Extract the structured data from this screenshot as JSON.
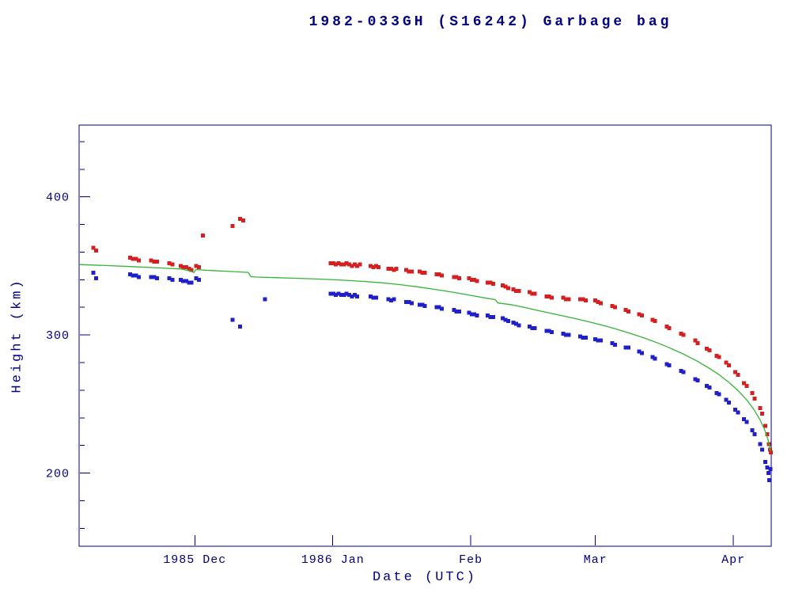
{
  "chart_data": {
    "type": "scatter",
    "title": "1982-033GH (S16242) Garbage bag",
    "xlabel": "Date (UTC)",
    "ylabel": "Height (km)",
    "grid": false,
    "legend": false,
    "colors": {
      "frame": "#000080",
      "text": "#000080",
      "red_series": "#d42020",
      "blue_series": "#2020c8",
      "green_line": "#33b533"
    },
    "x_axis": {
      "unit": "days since 1985-11-05",
      "lim": [
        0,
        155.5
      ],
      "ticks": [
        {
          "t": 26,
          "label": "1985 Dec"
        },
        {
          "t": 57,
          "label": "1986 Jan"
        },
        {
          "t": 88,
          "label": "Feb"
        },
        {
          "t": 116,
          "label": "Mar"
        },
        {
          "t": 147,
          "label": "Apr"
        }
      ]
    },
    "y_axis": {
      "lim": [
        147,
        452
      ],
      "ticks": [
        {
          "v": 200,
          "label": "200"
        },
        {
          "v": 300,
          "label": "300"
        },
        {
          "v": 400,
          "label": "400"
        }
      ],
      "minor_step": 20
    },
    "series": [
      {
        "id": "red-squares",
        "kind": "scatter",
        "marker": "square",
        "color": "red_series",
        "points": [
          [
            3.2,
            363
          ],
          [
            3.8,
            361
          ],
          [
            11.5,
            356
          ],
          [
            12.1,
            355
          ],
          [
            12.8,
            355
          ],
          [
            13.4,
            354
          ],
          [
            16.2,
            354
          ],
          [
            16.9,
            353
          ],
          [
            17.5,
            353
          ],
          [
            20.3,
            352
          ],
          [
            21.0,
            351
          ],
          [
            22.8,
            350
          ],
          [
            23.4,
            349
          ],
          [
            24.1,
            349
          ],
          [
            24.7,
            348
          ],
          [
            25.2,
            347
          ],
          [
            26.3,
            350
          ],
          [
            26.9,
            349
          ],
          [
            27.8,
            372
          ],
          [
            34.5,
            379
          ],
          [
            36.2,
            384
          ],
          [
            36.9,
            383
          ],
          [
            56.5,
            352
          ],
          [
            57.1,
            352
          ],
          [
            57.7,
            351
          ],
          [
            58.3,
            352
          ],
          [
            58.9,
            351
          ],
          [
            59.5,
            351
          ],
          [
            60.1,
            352
          ],
          [
            60.7,
            351
          ],
          [
            61.3,
            350
          ],
          [
            61.9,
            351
          ],
          [
            62.5,
            350
          ],
          [
            63.1,
            351
          ],
          [
            65.5,
            350
          ],
          [
            66.1,
            349
          ],
          [
            66.7,
            350
          ],
          [
            67.3,
            349
          ],
          [
            69.5,
            348
          ],
          [
            70.1,
            348
          ],
          [
            70.7,
            347
          ],
          [
            71.3,
            348
          ],
          [
            73.5,
            347
          ],
          [
            74.1,
            346
          ],
          [
            74.7,
            346
          ],
          [
            76.5,
            346
          ],
          [
            77.1,
            345
          ],
          [
            77.7,
            345
          ],
          [
            80.3,
            344
          ],
          [
            80.9,
            344
          ],
          [
            81.5,
            343
          ],
          [
            84.2,
            342
          ],
          [
            84.8,
            342
          ],
          [
            85.4,
            341
          ],
          [
            87.6,
            341
          ],
          [
            88.2,
            340
          ],
          [
            88.8,
            340
          ],
          [
            89.4,
            339
          ],
          [
            91.8,
            338
          ],
          [
            92.4,
            338
          ],
          [
            93.0,
            337
          ],
          [
            95.2,
            336
          ],
          [
            95.8,
            335
          ],
          [
            96.4,
            334
          ],
          [
            97.6,
            333
          ],
          [
            98.2,
            332
          ],
          [
            98.8,
            332
          ],
          [
            101.2,
            331
          ],
          [
            101.8,
            330
          ],
          [
            102.4,
            330
          ],
          [
            105.0,
            328
          ],
          [
            105.6,
            328
          ],
          [
            106.2,
            327
          ],
          [
            108.8,
            327
          ],
          [
            109.4,
            326
          ],
          [
            110.0,
            326
          ],
          [
            112.6,
            326
          ],
          [
            113.2,
            326
          ],
          [
            113.8,
            325
          ],
          [
            116.0,
            325
          ],
          [
            116.6,
            324
          ],
          [
            117.2,
            323
          ],
          [
            119.8,
            321
          ],
          [
            120.4,
            320
          ],
          [
            122.8,
            318
          ],
          [
            123.4,
            317
          ],
          [
            125.8,
            315
          ],
          [
            126.4,
            314
          ],
          [
            128.8,
            311
          ],
          [
            129.4,
            310
          ],
          [
            132.0,
            306
          ],
          [
            132.6,
            305
          ],
          [
            135.2,
            301
          ],
          [
            135.8,
            300
          ],
          [
            138.4,
            296
          ],
          [
            139.0,
            294
          ],
          [
            141.0,
            290
          ],
          [
            141.6,
            289
          ],
          [
            143.2,
            285
          ],
          [
            143.8,
            284
          ],
          [
            145.4,
            280
          ],
          [
            146.0,
            278
          ],
          [
            147.4,
            273
          ],
          [
            148.0,
            271
          ],
          [
            149.4,
            265
          ],
          [
            150.0,
            263
          ],
          [
            151.2,
            258
          ],
          [
            151.8,
            254
          ],
          [
            153.0,
            247
          ],
          [
            153.5,
            243
          ],
          [
            154.2,
            234
          ],
          [
            154.6,
            228
          ],
          [
            155.0,
            221
          ],
          [
            155.2,
            217
          ],
          [
            155.4,
            215
          ]
        ]
      },
      {
        "id": "blue-squares",
        "kind": "scatter",
        "marker": "square",
        "color": "blue_series",
        "points": [
          [
            3.2,
            345
          ],
          [
            3.8,
            341
          ],
          [
            11.5,
            344
          ],
          [
            12.1,
            343
          ],
          [
            12.8,
            343
          ],
          [
            13.4,
            342
          ],
          [
            16.2,
            342
          ],
          [
            16.9,
            342
          ],
          [
            17.5,
            341
          ],
          [
            20.3,
            341
          ],
          [
            21.0,
            340
          ],
          [
            22.8,
            340
          ],
          [
            23.4,
            339
          ],
          [
            24.1,
            339
          ],
          [
            24.7,
            338
          ],
          [
            25.2,
            338
          ],
          [
            26.3,
            341
          ],
          [
            26.9,
            340
          ],
          [
            34.5,
            311
          ],
          [
            36.2,
            306
          ],
          [
            41.8,
            326
          ],
          [
            56.5,
            330
          ],
          [
            57.1,
            330
          ],
          [
            57.7,
            329
          ],
          [
            58.3,
            330
          ],
          [
            58.9,
            329
          ],
          [
            59.5,
            329
          ],
          [
            60.1,
            330
          ],
          [
            60.7,
            329
          ],
          [
            61.3,
            328
          ],
          [
            61.9,
            329
          ],
          [
            62.5,
            328
          ],
          [
            65.5,
            328
          ],
          [
            66.1,
            327
          ],
          [
            66.7,
            327
          ],
          [
            69.5,
            326
          ],
          [
            70.1,
            325
          ],
          [
            70.7,
            326
          ],
          [
            73.5,
            324
          ],
          [
            74.1,
            324
          ],
          [
            74.7,
            323
          ],
          [
            76.5,
            322
          ],
          [
            77.1,
            322
          ],
          [
            77.7,
            321
          ],
          [
            80.3,
            320
          ],
          [
            80.9,
            320
          ],
          [
            81.5,
            319
          ],
          [
            84.2,
            318
          ],
          [
            84.8,
            317
          ],
          [
            85.4,
            317
          ],
          [
            87.6,
            316
          ],
          [
            88.2,
            315
          ],
          [
            88.8,
            315
          ],
          [
            89.4,
            314
          ],
          [
            91.8,
            314
          ],
          [
            92.4,
            313
          ],
          [
            93.0,
            313
          ],
          [
            95.2,
            312
          ],
          [
            95.8,
            311
          ],
          [
            96.4,
            310
          ],
          [
            97.6,
            309
          ],
          [
            98.2,
            308
          ],
          [
            98.8,
            307
          ],
          [
            101.2,
            306
          ],
          [
            101.8,
            305
          ],
          [
            102.4,
            305
          ],
          [
            105.0,
            303
          ],
          [
            105.6,
            303
          ],
          [
            106.2,
            302
          ],
          [
            108.8,
            301
          ],
          [
            109.4,
            300
          ],
          [
            110.0,
            300
          ],
          [
            112.6,
            299
          ],
          [
            113.2,
            298
          ],
          [
            113.8,
            298
          ],
          [
            116.0,
            297
          ],
          [
            116.6,
            296
          ],
          [
            117.2,
            296
          ],
          [
            119.8,
            294
          ],
          [
            120.4,
            293
          ],
          [
            122.8,
            291
          ],
          [
            123.4,
            291
          ],
          [
            125.8,
            288
          ],
          [
            126.4,
            287
          ],
          [
            128.8,
            284
          ],
          [
            129.4,
            283
          ],
          [
            132.0,
            279
          ],
          [
            132.6,
            278
          ],
          [
            135.2,
            274
          ],
          [
            135.8,
            273
          ],
          [
            138.4,
            268
          ],
          [
            139.0,
            267
          ],
          [
            141.0,
            263
          ],
          [
            141.6,
            262
          ],
          [
            143.2,
            258
          ],
          [
            143.8,
            257
          ],
          [
            145.4,
            253
          ],
          [
            146.0,
            251
          ],
          [
            147.4,
            246
          ],
          [
            148.0,
            244
          ],
          [
            149.4,
            239
          ],
          [
            150.0,
            237
          ],
          [
            151.2,
            231
          ],
          [
            151.8,
            228
          ],
          [
            153.0,
            221
          ],
          [
            153.5,
            217
          ],
          [
            154.2,
            208
          ],
          [
            154.6,
            204
          ],
          [
            154.9,
            200
          ],
          [
            155.1,
            195
          ],
          [
            155.3,
            203
          ]
        ]
      },
      {
        "id": "green-line",
        "kind": "line",
        "color": "green_line",
        "points": [
          [
            0,
            351
          ],
          [
            6,
            350.3
          ],
          [
            12,
            349.5
          ],
          [
            18,
            348.6
          ],
          [
            23,
            347.8
          ],
          [
            25,
            346.2
          ],
          [
            25.8,
            345.2
          ],
          [
            26.2,
            347.3
          ],
          [
            30,
            346.6
          ],
          [
            34,
            346
          ],
          [
            38,
            345.3
          ],
          [
            38.6,
            342.2
          ],
          [
            40,
            341.9
          ],
          [
            44,
            341.5
          ],
          [
            48,
            341.1
          ],
          [
            52,
            340.7
          ],
          [
            56,
            340.2
          ],
          [
            60,
            339.6
          ],
          [
            64,
            338.8
          ],
          [
            68,
            337.8
          ],
          [
            72,
            336.5
          ],
          [
            76,
            334.9
          ],
          [
            80,
            333
          ],
          [
            84,
            331
          ],
          [
            88,
            328.7
          ],
          [
            91,
            326.9
          ],
          [
            93.5,
            325.6
          ],
          [
            94.1,
            323.2
          ],
          [
            97,
            322
          ],
          [
            100,
            320
          ],
          [
            103,
            317.8
          ],
          [
            106,
            315.7
          ],
          [
            109,
            313.6
          ],
          [
            112,
            311.5
          ],
          [
            115,
            309.2
          ],
          [
            118,
            306.7
          ],
          [
            121,
            304
          ],
          [
            124,
            301
          ],
          [
            127,
            297.8
          ],
          [
            130,
            294.2
          ],
          [
            133,
            290.2
          ],
          [
            136,
            285.8
          ],
          [
            139,
            280.8
          ],
          [
            142,
            275
          ],
          [
            144,
            270.7
          ],
          [
            146,
            265.7
          ],
          [
            148,
            259.9
          ],
          [
            150,
            252.9
          ],
          [
            151.5,
            246.5
          ],
          [
            153,
            238.5
          ],
          [
            154,
            231.5
          ],
          [
            154.8,
            224
          ],
          [
            155.3,
            216
          ]
        ]
      }
    ]
  }
}
